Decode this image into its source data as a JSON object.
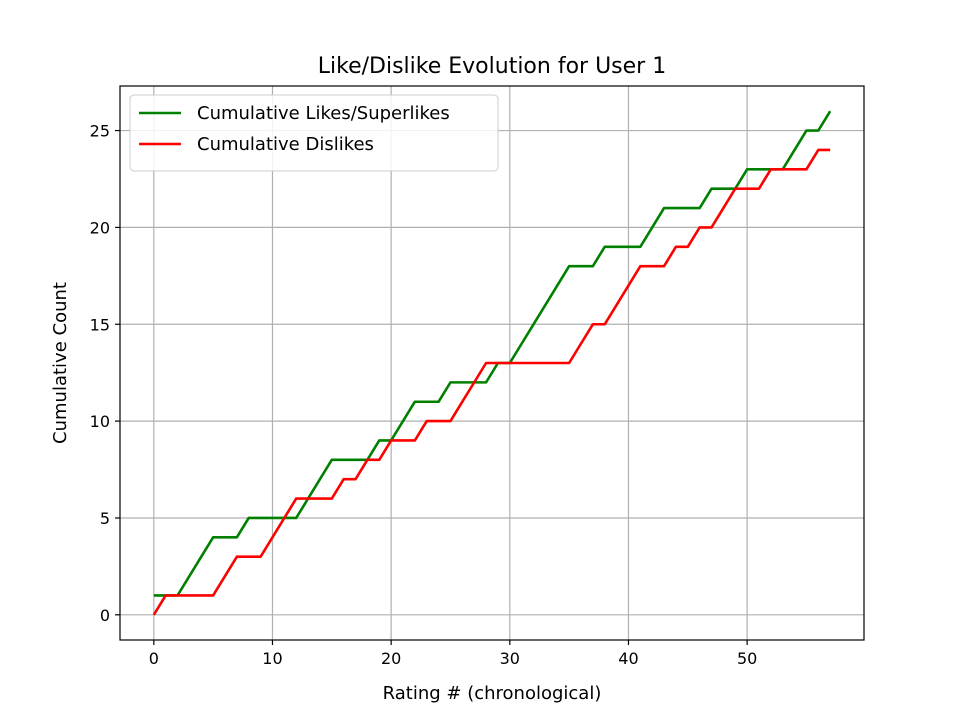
{
  "chart_data": {
    "type": "line",
    "title": "Like/Dislike Evolution for User 1",
    "xlabel": "Rating # (chronological)",
    "ylabel": "Cumulative Count",
    "xlim": [
      -2.85,
      59.85
    ],
    "ylim": [
      -1.3,
      27.3
    ],
    "xticks": [
      0,
      10,
      20,
      30,
      40,
      50
    ],
    "yticks": [
      0,
      5,
      10,
      15,
      20,
      25
    ],
    "grid": true,
    "legend_position": "upper-left",
    "series": [
      {
        "name": "Cumulative Likes/Superlikes",
        "color": "#008000",
        "x": [
          0,
          1,
          2,
          3,
          4,
          5,
          6,
          7,
          8,
          9,
          10,
          11,
          12,
          13,
          14,
          15,
          16,
          17,
          18,
          19,
          20,
          21,
          22,
          23,
          24,
          25,
          26,
          27,
          28,
          29,
          30,
          31,
          32,
          33,
          34,
          35,
          36,
          37,
          38,
          39,
          40,
          41,
          42,
          43,
          44,
          45,
          46,
          47,
          48,
          49,
          50,
          51,
          52,
          53,
          54,
          55,
          56,
          57
        ],
        "y": [
          1,
          1,
          1,
          2,
          3,
          4,
          4,
          4,
          5,
          5,
          5,
          5,
          5,
          6,
          7,
          8,
          8,
          8,
          8,
          9,
          9,
          10,
          11,
          11,
          11,
          12,
          12,
          12,
          12,
          13,
          13,
          14,
          15,
          16,
          17,
          18,
          18,
          18,
          19,
          19,
          19,
          19,
          20,
          21,
          21,
          21,
          21,
          22,
          22,
          22,
          23,
          23,
          23,
          23,
          24,
          25,
          25,
          26
        ]
      },
      {
        "name": "Cumulative Dislikes",
        "color": "#ff0000",
        "x": [
          0,
          1,
          2,
          3,
          4,
          5,
          6,
          7,
          8,
          9,
          10,
          11,
          12,
          13,
          14,
          15,
          16,
          17,
          18,
          19,
          20,
          21,
          22,
          23,
          24,
          25,
          26,
          27,
          28,
          29,
          30,
          31,
          32,
          33,
          34,
          35,
          36,
          37,
          38,
          39,
          40,
          41,
          42,
          43,
          44,
          45,
          46,
          47,
          48,
          49,
          50,
          51,
          52,
          53,
          54,
          55,
          56,
          57
        ],
        "y": [
          0,
          1,
          1,
          1,
          1,
          1,
          2,
          3,
          3,
          3,
          4,
          5,
          6,
          6,
          6,
          6,
          7,
          7,
          8,
          8,
          9,
          9,
          9,
          10,
          10,
          10,
          11,
          12,
          13,
          13,
          13,
          13,
          13,
          13,
          13,
          13,
          14,
          15,
          15,
          16,
          17,
          18,
          18,
          18,
          19,
          19,
          20,
          20,
          21,
          22,
          22,
          22,
          23,
          23,
          23,
          23,
          24,
          24
        ]
      }
    ]
  }
}
